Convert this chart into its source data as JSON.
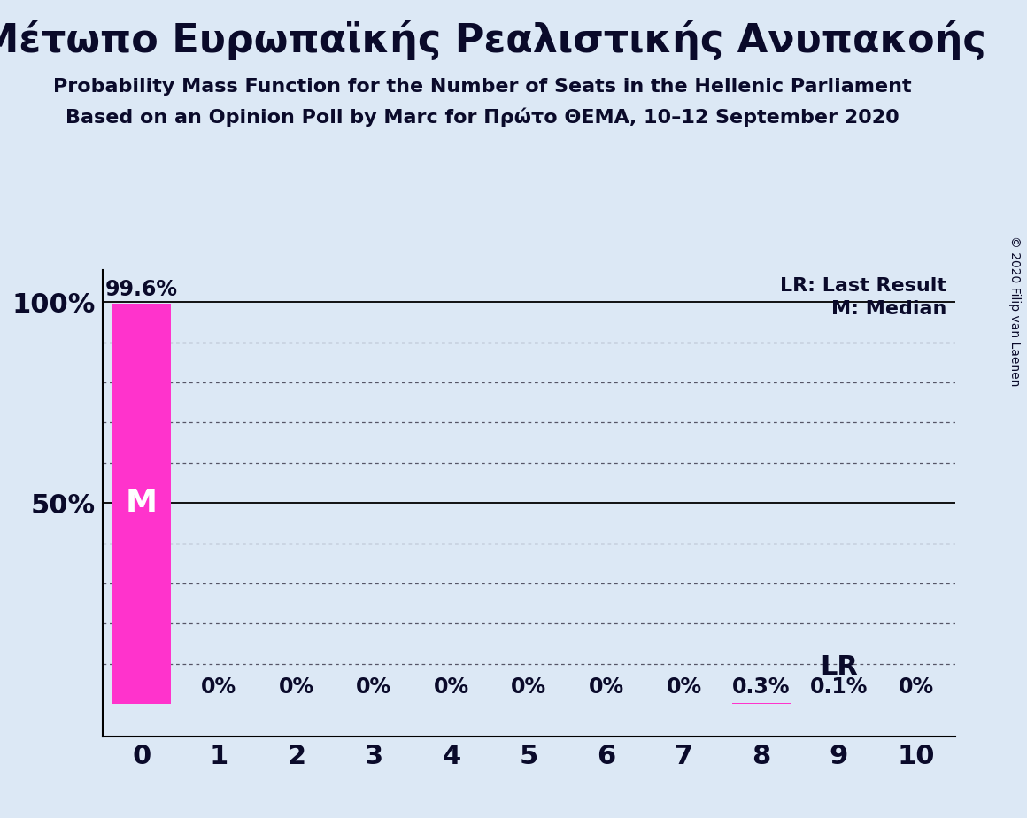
{
  "title": "Μέτωπο Ευρωπαϊκής Ρεαλιστικής Ανυπακοής",
  "subtitle1": "Probability Mass Function for the Number of Seats in the Hellenic Parliament",
  "subtitle2": "Based on an Opinion Poll by Marc for Πρώτο ΘΕΜΑ, 10–12 September 2020",
  "copyright": "© 2020 Filip van Laenen",
  "bar_color": "#FF33CC",
  "background_color": "#DCE8F5",
  "x_values": [
    0,
    1,
    2,
    3,
    4,
    5,
    6,
    7,
    8,
    9,
    10
  ],
  "y_values": [
    99.6,
    0.0,
    0.0,
    0.0,
    0.0,
    0.0,
    0.0,
    0.0,
    0.3,
    0.1,
    0.0
  ],
  "bar_labels": [
    "99.6%",
    "0%",
    "0%",
    "0%",
    "0%",
    "0%",
    "0%",
    "0%",
    "0.3%",
    "0.1%",
    "0%"
  ],
  "median_x": 0,
  "median_label": "M",
  "lr_x": 9,
  "lr_label": "LR",
  "legend_lr": "LR: Last Result",
  "legend_m": "M: Median",
  "title_fontsize": 32,
  "subtitle_fontsize": 16,
  "axis_tick_fontsize": 22,
  "bar_label_fontsize": 17,
  "median_fontsize": 26,
  "lr_fontsize": 22,
  "legend_fontsize": 16,
  "copyright_fontsize": 10,
  "text_color": "#0A0A2A",
  "grid_color": "#555566",
  "spine_color": "#000000",
  "dotted_levels": [
    10,
    20,
    30,
    40,
    60,
    70,
    80,
    90
  ],
  "solid_levels": [
    50,
    100
  ],
  "xlim": [
    -0.5,
    10.5
  ],
  "ylim": [
    -8,
    108
  ]
}
